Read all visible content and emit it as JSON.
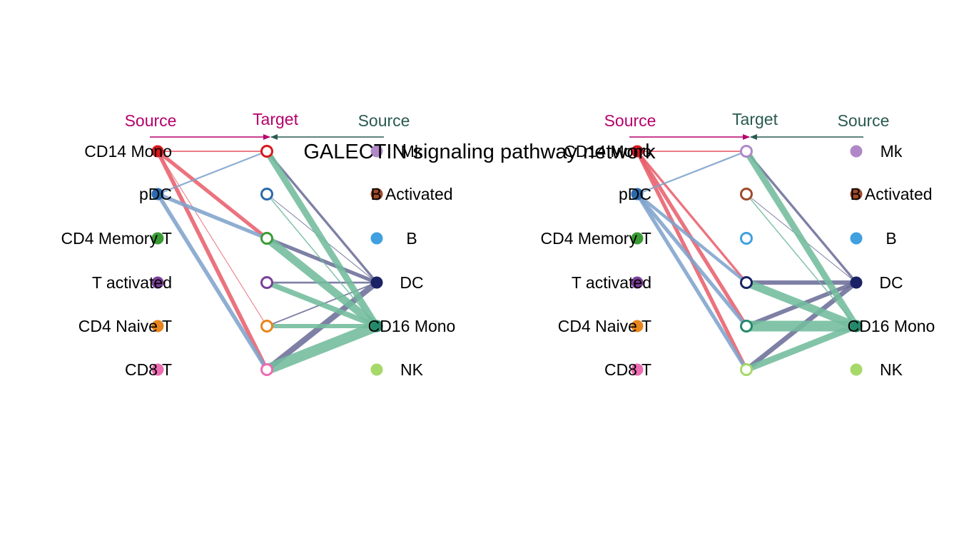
{
  "title": "GALECTIN signaling pathway network",
  "header_labels": {
    "left_source": "Source",
    "target": "Target",
    "right_source": "Source"
  },
  "colors": {
    "left_source_header": "#b5006b",
    "right_source_header": "#2a5a50",
    "text": "#000000"
  },
  "node_colors": {
    "CD14 Mono": "#d7191c",
    "pDC": "#2b6aab",
    "CD4 Memory T": "#3a9b35",
    "T activated": "#7b3f98",
    "CD4 Naive T": "#e8851c",
    "CD8 T": "#ee6cb2",
    "Mk": "#b088c8",
    "B Activated": "#a04a2a",
    "B": "#40a0e0",
    "DC": "#1a2265",
    "CD16 Mono": "#23896a",
    "NK": "#a6d96a"
  },
  "edge_colors": {
    "CD14 Mono": "#e8606c",
    "pDC": "#7fa3cc",
    "DC": "#6c6e98",
    "CD16 Mono": "#72bc9d"
  },
  "panels": [
    {
      "id": "panel-1",
      "left_sources": [
        "CD14 Mono",
        "pDC",
        "CD4 Memory T",
        "T activated",
        "CD4 Naive T",
        "CD8 T"
      ],
      "targets": [
        "CD14 Mono",
        "pDC",
        "CD4 Memory T",
        "T activated",
        "CD4 Naive T",
        "CD8 T"
      ],
      "right_sources": [
        "Mk",
        "B Activated",
        "B",
        "DC",
        "CD16 Mono",
        "NK"
      ],
      "edges": [
        {
          "source": "CD14 Mono",
          "target": "CD14 Mono",
          "weight": 0.25
        },
        {
          "source": "CD14 Mono",
          "target": "CD4 Memory T",
          "weight": 0.7
        },
        {
          "source": "CD14 Mono",
          "target": "CD4 Naive T",
          "weight": 0.1
        },
        {
          "source": "CD14 Mono",
          "target": "CD8 T",
          "weight": 0.75
        },
        {
          "source": "pDC",
          "target": "CD14 Mono",
          "weight": 0.3
        },
        {
          "source": "pDC",
          "target": "CD4 Memory T",
          "weight": 0.7
        },
        {
          "source": "pDC",
          "target": "CD8 T",
          "weight": 0.75
        },
        {
          "source": "DC",
          "target": "CD14 Mono",
          "weight": 0.45
        },
        {
          "source": "DC",
          "target": "pDC",
          "weight": 0.1
        },
        {
          "source": "DC",
          "target": "CD4 Memory T",
          "weight": 0.7
        },
        {
          "source": "DC",
          "target": "T activated",
          "weight": 0.35
        },
        {
          "source": "DC",
          "target": "CD4 Naive T",
          "weight": 0.25
        },
        {
          "source": "DC",
          "target": "CD8 T",
          "weight": 1.1
        },
        {
          "source": "CD16 Mono",
          "target": "CD14 Mono",
          "weight": 1.2
        },
        {
          "source": "CD16 Mono",
          "target": "pDC",
          "weight": 0.2
        },
        {
          "source": "CD16 Mono",
          "target": "CD4 Memory T",
          "weight": 1.5
        },
        {
          "source": "CD16 Mono",
          "target": "T activated",
          "weight": 1.0
        },
        {
          "source": "CD16 Mono",
          "target": "CD4 Naive T",
          "weight": 0.8
        },
        {
          "source": "CD16 Mono",
          "target": "CD8 T",
          "weight": 2.0
        }
      ]
    },
    {
      "id": "panel-2",
      "left_sources": [
        "CD14 Mono",
        "pDC",
        "CD4 Memory T",
        "T activated",
        "CD4 Naive T",
        "CD8 T"
      ],
      "targets": [
        "Mk",
        "B Activated",
        "B",
        "DC",
        "CD16 Mono",
        "NK"
      ],
      "right_sources": [
        "Mk",
        "B Activated",
        "B",
        "DC",
        "CD16 Mono",
        "NK"
      ],
      "edges": [
        {
          "source": "CD14 Mono",
          "target": "Mk",
          "weight": 0.25
        },
        {
          "source": "CD14 Mono",
          "target": "DC",
          "weight": 0.45
        },
        {
          "source": "CD14 Mono",
          "target": "CD16 Mono",
          "weight": 0.7
        },
        {
          "source": "CD14 Mono",
          "target": "NK",
          "weight": 0.7
        },
        {
          "source": "pDC",
          "target": "Mk",
          "weight": 0.3
        },
        {
          "source": "pDC",
          "target": "DC",
          "weight": 0.6
        },
        {
          "source": "pDC",
          "target": "CD16 Mono",
          "weight": 0.7
        },
        {
          "source": "pDC",
          "target": "NK",
          "weight": 0.7
        },
        {
          "source": "DC",
          "target": "Mk",
          "weight": 0.45
        },
        {
          "source": "DC",
          "target": "B Activated",
          "weight": 0.1
        },
        {
          "source": "DC",
          "target": "DC",
          "weight": 0.8
        },
        {
          "source": "DC",
          "target": "CD16 Mono",
          "weight": 0.8
        },
        {
          "source": "DC",
          "target": "NK",
          "weight": 0.9
        },
        {
          "source": "CD16 Mono",
          "target": "Mk",
          "weight": 1.2
        },
        {
          "source": "CD16 Mono",
          "target": "B Activated",
          "weight": 0.2
        },
        {
          "source": "CD16 Mono",
          "target": "DC",
          "weight": 1.5
        },
        {
          "source": "CD16 Mono",
          "target": "CD16 Mono",
          "weight": 2.0
        },
        {
          "source": "CD16 Mono",
          "target": "NK",
          "weight": 1.2
        }
      ]
    }
  ]
}
